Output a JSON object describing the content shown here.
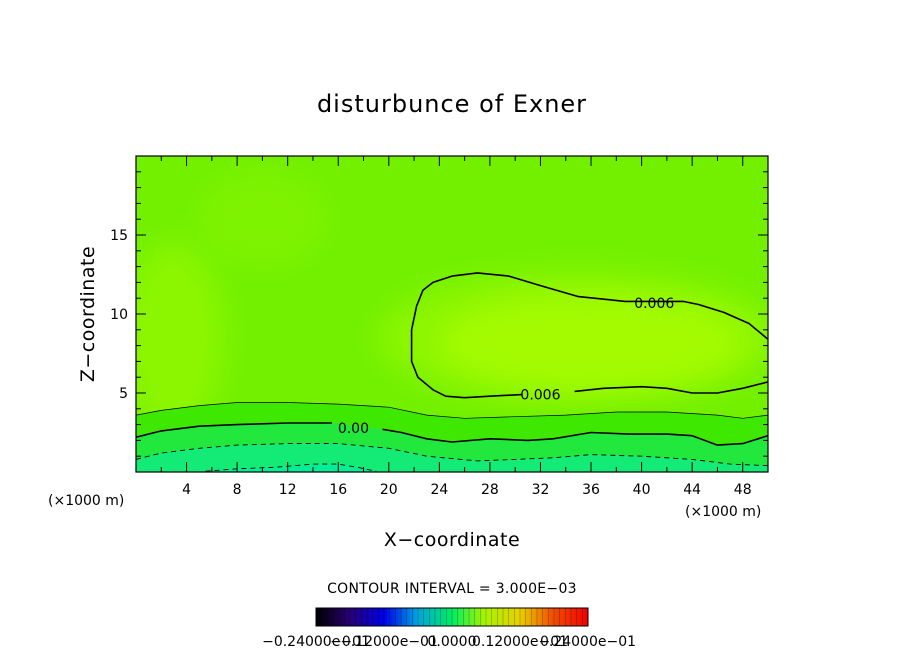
{
  "chart_data": {
    "type": "contour",
    "title": "disturbunce of Exner",
    "xlabel": "X−coordinate",
    "ylabel": "Z−coordinate",
    "x_unit": "(×1000 m)",
    "y_unit": "(×1000 m)",
    "xlim": [
      0,
      50
    ],
    "ylim": [
      0,
      20
    ],
    "x_ticks": [
      4,
      8,
      12,
      16,
      20,
      24,
      28,
      32,
      36,
      40,
      44,
      48
    ],
    "y_ticks": [
      5,
      10,
      15
    ],
    "contour_interval_text": "CONTOUR INTERVAL = 3.000E−03",
    "contour_interval": 0.003,
    "contour_labels": [
      {
        "text": "0.006",
        "x": 41,
        "z": 10.7
      },
      {
        "text": "0.006",
        "x": 32,
        "z": 4.9
      },
      {
        "text": "0.00",
        "x": 17.2,
        "z": 2.8
      }
    ],
    "contours": [
      {
        "level": 0.006,
        "style": "solid",
        "points": [
          [
            22.2,
            10.5
          ],
          [
            22.7,
            11.5
          ],
          [
            23.5,
            12.0
          ],
          [
            25.0,
            12.4
          ],
          [
            27.0,
            12.6
          ],
          [
            29.5,
            12.4
          ],
          [
            32.0,
            11.8
          ],
          [
            35.0,
            11.1
          ],
          [
            37.5,
            10.9
          ],
          [
            38.7,
            10.8
          ],
          [
            43.3,
            10.8
          ],
          [
            44.5,
            10.6
          ],
          [
            46.5,
            10.1
          ],
          [
            48.5,
            9.4
          ],
          [
            50.0,
            8.4
          ]
        ]
      },
      {
        "level": 0.006,
        "style": "solid",
        "points": [
          [
            22.2,
            10.5
          ],
          [
            21.8,
            9.0
          ],
          [
            21.8,
            7.0
          ],
          [
            22.3,
            6.0
          ],
          [
            23.5,
            5.2
          ],
          [
            24.5,
            4.8
          ],
          [
            26.0,
            4.7
          ],
          [
            28.0,
            4.8
          ],
          [
            30.5,
            4.9
          ]
        ]
      },
      {
        "level": 0.006,
        "style": "solid",
        "points": [
          [
            34.7,
            5.1
          ],
          [
            37.0,
            5.3
          ],
          [
            40.0,
            5.4
          ],
          [
            42.0,
            5.3
          ],
          [
            44.0,
            5.0
          ],
          [
            46.0,
            5.0
          ],
          [
            48.0,
            5.3
          ],
          [
            50.0,
            5.7
          ]
        ]
      },
      {
        "level": 0.003,
        "style": "thin",
        "points": [
          [
            0,
            3.6
          ],
          [
            2,
            3.9
          ],
          [
            5,
            4.2
          ],
          [
            8,
            4.4
          ],
          [
            12,
            4.4
          ],
          [
            16,
            4.3
          ],
          [
            20,
            4.1
          ],
          [
            23,
            3.6
          ],
          [
            26,
            3.4
          ],
          [
            30,
            3.5
          ],
          [
            34,
            3.6
          ],
          [
            38,
            3.8
          ],
          [
            42,
            3.8
          ],
          [
            46,
            3.6
          ],
          [
            48,
            3.4
          ],
          [
            50,
            3.6
          ]
        ]
      },
      {
        "level": 0.0,
        "style": "solid",
        "points": [
          [
            0,
            2.2
          ],
          [
            2,
            2.6
          ],
          [
            5,
            2.9
          ],
          [
            8,
            3.0
          ],
          [
            12,
            3.1
          ],
          [
            15.5,
            3.1
          ]
        ]
      },
      {
        "level": 0.0,
        "style": "solid",
        "points": [
          [
            19.5,
            2.7
          ],
          [
            21,
            2.5
          ],
          [
            23,
            2.1
          ],
          [
            25,
            1.9
          ],
          [
            28,
            2.1
          ],
          [
            31,
            2.0
          ],
          [
            33,
            2.1
          ],
          [
            36,
            2.5
          ],
          [
            39,
            2.4
          ],
          [
            42,
            2.4
          ],
          [
            44,
            2.3
          ],
          [
            46,
            1.7
          ],
          [
            48,
            1.8
          ],
          [
            50,
            2.3
          ]
        ]
      },
      {
        "level": -0.003,
        "style": "dashed",
        "points": [
          [
            0,
            0.8
          ],
          [
            2,
            1.2
          ],
          [
            5,
            1.5
          ],
          [
            8,
            1.7
          ],
          [
            12,
            1.8
          ],
          [
            16,
            1.8
          ],
          [
            20,
            1.5
          ],
          [
            23,
            1.0
          ],
          [
            27,
            0.7
          ],
          [
            30,
            0.8
          ],
          [
            33,
            0.9
          ],
          [
            36,
            1.1
          ],
          [
            40,
            1.0
          ],
          [
            44,
            0.8
          ],
          [
            47,
            0.5
          ],
          [
            50,
            0.4
          ]
        ]
      },
      {
        "level": -0.006,
        "style": "dashed",
        "points": [
          [
            5.5,
            0.05
          ],
          [
            8,
            0.2
          ],
          [
            11,
            0.3
          ],
          [
            14,
            0.5
          ],
          [
            16,
            0.5
          ],
          [
            17.5,
            0.3
          ],
          [
            19,
            0.05
          ]
        ]
      }
    ],
    "colorbar": {
      "tick_labels": [
        "−0.24000e−01",
        "−0.12000e−01",
        "0.0000",
        "0.12000e−01",
        "0.24000e−01"
      ],
      "min": -0.024,
      "max": 0.024
    },
    "colors": {
      "bg_deep": "#72f000",
      "field_bright": "#a4fb00",
      "field_mid": "#8cf600",
      "field_low": "#3ee800",
      "field_lower": "#22e83e",
      "field_lowest": "#14ea76",
      "field_bottom": "#00ee96"
    }
  }
}
